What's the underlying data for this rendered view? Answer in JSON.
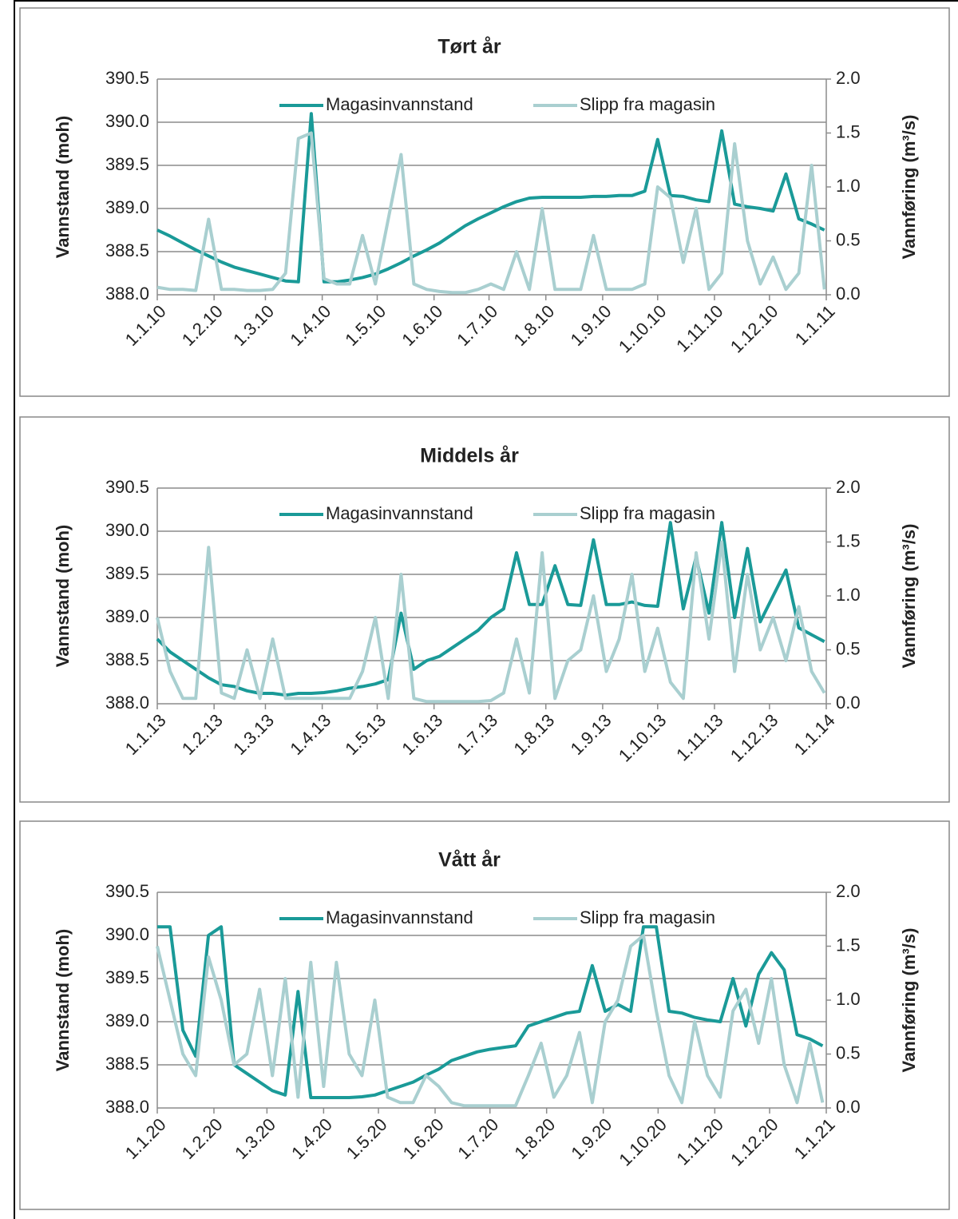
{
  "chart_data": [
    {
      "type": "line",
      "title": "Tørt år",
      "ylabel": "Vannstand (moh)",
      "y2label": "Vannføring (m³/s)",
      "legend": "top",
      "xlim": [
        0,
        365
      ],
      "xticks": [
        {
          "value": 0,
          "label": "1.1.10"
        },
        {
          "value": 31,
          "label": "1.2.10"
        },
        {
          "value": 59,
          "label": "1.3.10"
        },
        {
          "value": 90,
          "label": "1.4.10"
        },
        {
          "value": 120,
          "label": "1.5.10"
        },
        {
          "value": 151,
          "label": "1.6.10"
        },
        {
          "value": 181,
          "label": "1.7.10"
        },
        {
          "value": 212,
          "label": "1.8.10"
        },
        {
          "value": 243,
          "label": "1.9.10"
        },
        {
          "value": 273,
          "label": "1.10.10"
        },
        {
          "value": 304,
          "label": "1.11.10"
        },
        {
          "value": 334,
          "label": "1.12.10"
        },
        {
          "value": 365,
          "label": "1.1.11"
        }
      ],
      "ylim": [
        388,
        390.5
      ],
      "yticks": [
        {
          "value": 388,
          "label": "388.0"
        },
        388.5,
        {
          "value": 389,
          "label": "389.0"
        },
        389.5,
        {
          "value": 390,
          "label": "390.0"
        },
        390.5
      ],
      "y2lim": [
        0,
        2
      ],
      "y2ticks": [
        {
          "value": 0,
          "label": "0.0"
        },
        0.5,
        {
          "value": 1,
          "label": "1.0"
        },
        1.5,
        {
          "value": 2,
          "label": "2.0"
        }
      ],
      "x": [
        0,
        7,
        14,
        21,
        28,
        35,
        42,
        49,
        56,
        63,
        70,
        77,
        84,
        91,
        98,
        105,
        112,
        119,
        126,
        133,
        140,
        147,
        154,
        161,
        168,
        175,
        182,
        189,
        196,
        203,
        210,
        217,
        224,
        231,
        238,
        245,
        252,
        259,
        266,
        273,
        280,
        287,
        294,
        301,
        308,
        315,
        322,
        329,
        336,
        343,
        350,
        357,
        364
      ],
      "series": [
        {
          "name": "Magasinvannstand",
          "color": "#1a9a98",
          "values": [
            388.75,
            388.68,
            388.6,
            388.52,
            388.45,
            388.38,
            388.32,
            388.28,
            388.24,
            388.2,
            388.16,
            388.15,
            390.1,
            388.15,
            388.15,
            388.17,
            388.2,
            388.24,
            388.3,
            388.37,
            388.45,
            388.52,
            388.6,
            388.7,
            388.8,
            388.88,
            388.95,
            389.02,
            389.08,
            389.12,
            389.13,
            389.13,
            389.13,
            389.13,
            389.14,
            389.14,
            389.15,
            389.15,
            389.2,
            389.8,
            389.15,
            389.14,
            389.1,
            389.08,
            389.9,
            389.05,
            389.02,
            389.0,
            388.97,
            389.4,
            388.88,
            388.82,
            388.75
          ]
        },
        {
          "name": "Slipp fra magasin",
          "color": "#a9cfd0",
          "axis": "y2",
          "values": [
            0.07,
            0.05,
            0.05,
            0.04,
            0.7,
            0.05,
            0.05,
            0.04,
            0.04,
            0.05,
            0.2,
            1.45,
            1.5,
            0.15,
            0.1,
            0.1,
            0.55,
            0.1,
            0.7,
            1.3,
            0.1,
            0.05,
            0.03,
            0.02,
            0.02,
            0.05,
            0.1,
            0.05,
            0.4,
            0.05,
            0.8,
            0.05,
            0.05,
            0.05,
            0.55,
            0.05,
            0.05,
            0.05,
            0.1,
            1.0,
            0.9,
            0.3,
            0.8,
            0.05,
            0.2,
            1.4,
            0.5,
            0.1,
            0.35,
            0.05,
            0.2,
            1.2,
            0.05
          ]
        }
      ]
    },
    {
      "type": "line",
      "title": "Middels år",
      "ylabel": "Vannstand (moh)",
      "y2label": "Vannføring (m³/s)",
      "legend": "top",
      "xlim": [
        0,
        365
      ],
      "xticks": [
        {
          "value": 0,
          "label": "1.1.13"
        },
        {
          "value": 31,
          "label": "1.2.13"
        },
        {
          "value": 59,
          "label": "1.3.13"
        },
        {
          "value": 90,
          "label": "1.4.13"
        },
        {
          "value": 120,
          "label": "1.5.13"
        },
        {
          "value": 151,
          "label": "1.6.13"
        },
        {
          "value": 181,
          "label": "1.7.13"
        },
        {
          "value": 212,
          "label": "1.8.13"
        },
        {
          "value": 243,
          "label": "1.9.13"
        },
        {
          "value": 273,
          "label": "1.10.13"
        },
        {
          "value": 304,
          "label": "1.11.13"
        },
        {
          "value": 334,
          "label": "1.12.13"
        },
        {
          "value": 365,
          "label": "1.1.14"
        }
      ],
      "ylim": [
        388,
        390.5
      ],
      "yticks": [
        {
          "value": 388,
          "label": "388.0"
        },
        388.5,
        {
          "value": 389,
          "label": "389.0"
        },
        389.5,
        {
          "value": 390,
          "label": "390.0"
        },
        390.5
      ],
      "y2lim": [
        0,
        2
      ],
      "y2ticks": [
        {
          "value": 0,
          "label": "0.0"
        },
        0.5,
        {
          "value": 1,
          "label": "1.0"
        },
        1.5,
        {
          "value": 2,
          "label": "2.0"
        }
      ],
      "x": [
        0,
        7,
        14,
        21,
        28,
        35,
        42,
        49,
        56,
        63,
        70,
        77,
        84,
        91,
        98,
        105,
        112,
        119,
        126,
        133,
        140,
        147,
        154,
        161,
        168,
        175,
        182,
        189,
        196,
        203,
        210,
        217,
        224,
        231,
        238,
        245,
        252,
        259,
        266,
        273,
        280,
        287,
        294,
        301,
        308,
        315,
        322,
        329,
        336,
        343,
        350,
        357,
        364
      ],
      "series": [
        {
          "name": "Magasinvannstand",
          "color": "#1a9a98",
          "values": [
            388.75,
            388.6,
            388.5,
            388.4,
            388.3,
            388.22,
            388.2,
            388.15,
            388.12,
            388.12,
            388.1,
            388.12,
            388.12,
            388.13,
            388.15,
            388.18,
            388.2,
            388.23,
            388.28,
            389.05,
            388.4,
            388.5,
            388.55,
            388.65,
            388.75,
            388.85,
            389.0,
            389.1,
            389.75,
            389.15,
            389.15,
            389.6,
            389.15,
            389.14,
            389.9,
            389.15,
            389.15,
            389.18,
            389.14,
            389.13,
            390.1,
            389.1,
            389.7,
            389.05,
            390.1,
            389.0,
            389.8,
            388.95,
            389.25,
            389.55,
            388.88,
            388.8,
            388.72
          ]
        },
        {
          "name": "Slipp fra magasin",
          "color": "#a9cfd0",
          "axis": "y2",
          "values": [
            0.8,
            0.3,
            0.05,
            0.05,
            1.45,
            0.1,
            0.05,
            0.5,
            0.05,
            0.6,
            0.05,
            0.05,
            0.05,
            0.05,
            0.05,
            0.05,
            0.3,
            0.8,
            0.05,
            1.2,
            0.05,
            0.02,
            0.02,
            0.02,
            0.02,
            0.02,
            0.03,
            0.1,
            0.6,
            0.1,
            1.4,
            0.05,
            0.4,
            0.5,
            1.0,
            0.3,
            0.6,
            1.2,
            0.3,
            0.7,
            0.2,
            0.05,
            1.4,
            0.6,
            1.5,
            0.3,
            1.2,
            0.5,
            0.8,
            0.4,
            0.9,
            0.3,
            0.1
          ]
        }
      ]
    },
    {
      "type": "line",
      "title": "Vått år",
      "ylabel": "Vannstand (moh)",
      "y2label": "Vannføring (m³/s)",
      "legend": "top",
      "xlim": [
        0,
        366
      ],
      "xticks": [
        {
          "value": 0,
          "label": "1.1.20"
        },
        {
          "value": 31,
          "label": "1.2.20"
        },
        {
          "value": 60,
          "label": "1.3.20"
        },
        {
          "value": 91,
          "label": "1.4.20"
        },
        {
          "value": 121,
          "label": "1.5.20"
        },
        {
          "value": 152,
          "label": "1.6.20"
        },
        {
          "value": 182,
          "label": "1.7.20"
        },
        {
          "value": 213,
          "label": "1.8.20"
        },
        {
          "value": 244,
          "label": "1.9.20"
        },
        {
          "value": 274,
          "label": "1.10.20"
        },
        {
          "value": 305,
          "label": "1.11.20"
        },
        {
          "value": 335,
          "label": "1.12.20"
        },
        {
          "value": 366,
          "label": "1.1.21"
        }
      ],
      "ylim": [
        388,
        390.5
      ],
      "yticks": [
        {
          "value": 388,
          "label": "388.0"
        },
        388.5,
        {
          "value": 389,
          "label": "389.0"
        },
        389.5,
        {
          "value": 390,
          "label": "390.0"
        },
        390.5
      ],
      "y2lim": [
        0,
        2
      ],
      "y2ticks": [
        {
          "value": 0,
          "label": "0.0"
        },
        0.5,
        {
          "value": 1,
          "label": "1.0"
        },
        1.5,
        {
          "value": 2,
          "label": "2.0"
        }
      ],
      "x": [
        0,
        7,
        14,
        21,
        28,
        35,
        42,
        49,
        56,
        63,
        70,
        77,
        84,
        91,
        98,
        105,
        112,
        119,
        126,
        133,
        140,
        147,
        154,
        161,
        168,
        175,
        182,
        189,
        196,
        203,
        210,
        217,
        224,
        231,
        238,
        245,
        252,
        259,
        266,
        273,
        280,
        287,
        294,
        301,
        308,
        315,
        322,
        329,
        336,
        343,
        350,
        357,
        364
      ],
      "series": [
        {
          "name": "Magasinvannstand",
          "color": "#1a9a98",
          "values": [
            390.1,
            390.1,
            388.9,
            388.6,
            390.0,
            390.1,
            388.5,
            388.4,
            388.3,
            388.2,
            388.15,
            389.35,
            388.12,
            388.12,
            388.12,
            388.12,
            388.13,
            388.15,
            388.2,
            388.25,
            388.3,
            388.38,
            388.45,
            388.55,
            388.6,
            388.65,
            388.68,
            388.7,
            388.72,
            388.95,
            389.0,
            389.05,
            389.1,
            389.12,
            389.65,
            389.12,
            389.2,
            389.12,
            390.1,
            390.1,
            389.12,
            389.1,
            389.05,
            389.02,
            389.0,
            389.5,
            388.95,
            389.55,
            389.8,
            389.6,
            388.85,
            388.8,
            388.72
          ]
        },
        {
          "name": "Slipp fra magasin",
          "color": "#a9cfd0",
          "axis": "y2",
          "values": [
            1.5,
            1.0,
            0.5,
            0.3,
            1.4,
            1.0,
            0.4,
            0.5,
            1.1,
            0.3,
            1.2,
            0.1,
            1.35,
            0.2,
            1.35,
            0.5,
            0.3,
            1.0,
            0.1,
            0.05,
            0.05,
            0.3,
            0.2,
            0.05,
            0.02,
            0.02,
            0.02,
            0.02,
            0.02,
            0.3,
            0.6,
            0.1,
            0.3,
            0.7,
            0.05,
            0.8,
            1.0,
            1.5,
            1.6,
            0.9,
            0.3,
            0.05,
            0.8,
            0.3,
            0.1,
            0.9,
            1.1,
            0.6,
            1.2,
            0.4,
            0.05,
            0.6,
            0.05
          ]
        }
      ]
    }
  ]
}
